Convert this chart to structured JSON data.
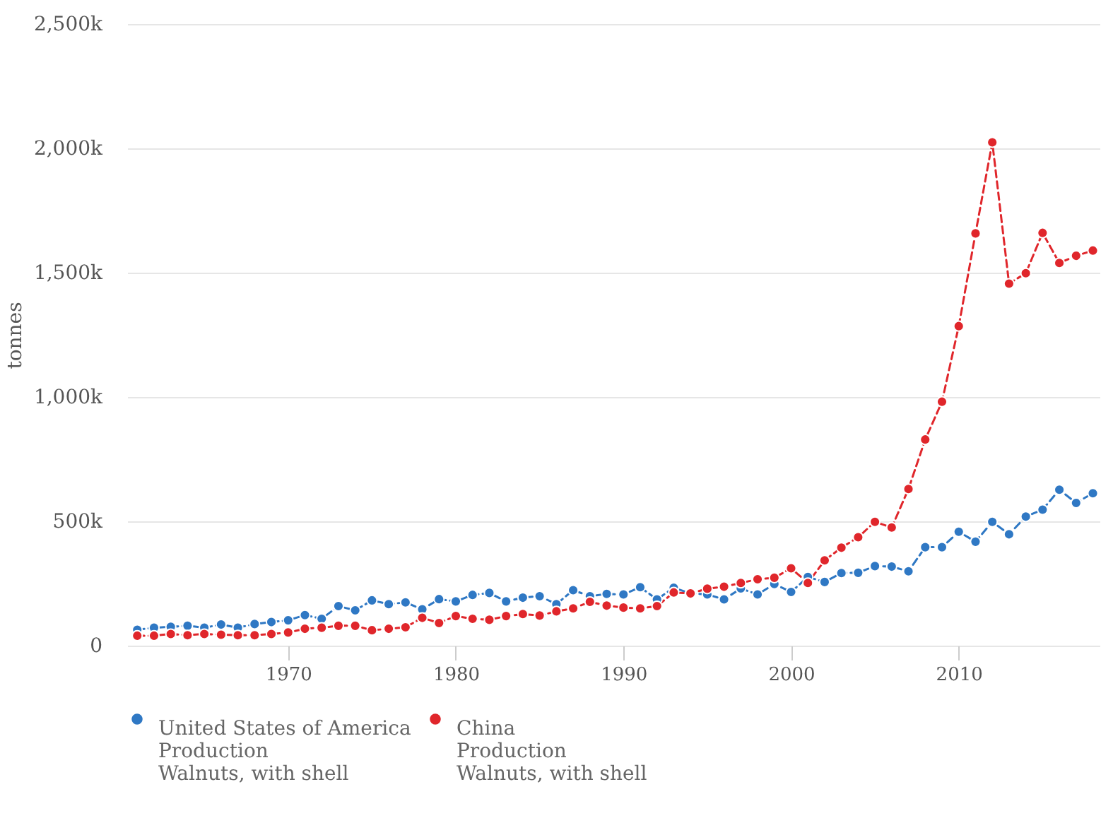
{
  "chart_data": {
    "type": "line",
    "ylabel": "tonnes",
    "x": [
      1961,
      1962,
      1963,
      1964,
      1965,
      1966,
      1967,
      1968,
      1969,
      1970,
      1971,
      1972,
      1973,
      1974,
      1975,
      1976,
      1977,
      1978,
      1979,
      1980,
      1981,
      1982,
      1983,
      1984,
      1985,
      1986,
      1987,
      1988,
      1989,
      1990,
      1991,
      1992,
      1993,
      1994,
      1995,
      1996,
      1997,
      1998,
      1999,
      2000,
      2001,
      2002,
      2003,
      2004,
      2005,
      2006,
      2007,
      2008,
      2009,
      2010,
      2011,
      2012,
      2013,
      2014,
      2015,
      2016,
      2017,
      2018
    ],
    "series": [
      {
        "name": "United States of America\nProduction\nWalnuts, with shell",
        "color": "#2f78c4",
        "values": [
          64000,
          72000,
          76000,
          80000,
          72000,
          85000,
          72000,
          87000,
          95000,
          102000,
          123000,
          108000,
          159000,
          142000,
          182000,
          167000,
          174000,
          146000,
          187000,
          178000,
          204000,
          212000,
          178000,
          193000,
          199000,
          167000,
          223000,
          199000,
          208000,
          206000,
          235000,
          186000,
          233000,
          210000,
          206000,
          186000,
          230000,
          206000,
          248000,
          216000,
          276000,
          256000,
          292000,
          293000,
          320000,
          318000,
          299000,
          396000,
          396000,
          458000,
          418000,
          498000,
          448000,
          519000,
          547000,
          627000,
          574000,
          613000
        ]
      },
      {
        "name": "China\nProduction\nWalnuts, with shell",
        "color": "#e0262b",
        "values": [
          40000,
          40000,
          47000,
          42000,
          47000,
          44000,
          42000,
          42000,
          47000,
          53000,
          68000,
          72000,
          80000,
          80000,
          62000,
          68000,
          74000,
          112000,
          91000,
          119000,
          108000,
          104000,
          119000,
          127000,
          121000,
          138000,
          150000,
          176000,
          161000,
          153000,
          150000,
          159000,
          214000,
          210000,
          229000,
          237000,
          252000,
          267000,
          273000,
          311000,
          252000,
          343000,
          394000,
          436000,
          498000,
          475000,
          630000,
          829000,
          981000,
          1285000,
          1658000,
          2024000,
          1456000,
          1498000,
          1660000,
          1539000,
          1568000,
          1589000
        ]
      }
    ],
    "xlim": [
      1960.4,
      2018.4
    ],
    "xticks": [
      1970,
      1980,
      1990,
      2000,
      2010
    ],
    "ylim": [
      0,
      2500000
    ],
    "yticks": [
      {
        "value": 0,
        "label": "0"
      },
      {
        "value": 500000,
        "label": "500k"
      },
      {
        "value": 1000000,
        "label": "1,000k"
      },
      {
        "value": 1500000,
        "label": "1,500k"
      },
      {
        "value": 2000000,
        "label": "2,000k"
      },
      {
        "value": 2500000,
        "label": "2,500k"
      }
    ],
    "grid": "y",
    "legend": "bottom",
    "marker": "circle",
    "line_style": "dashed"
  }
}
